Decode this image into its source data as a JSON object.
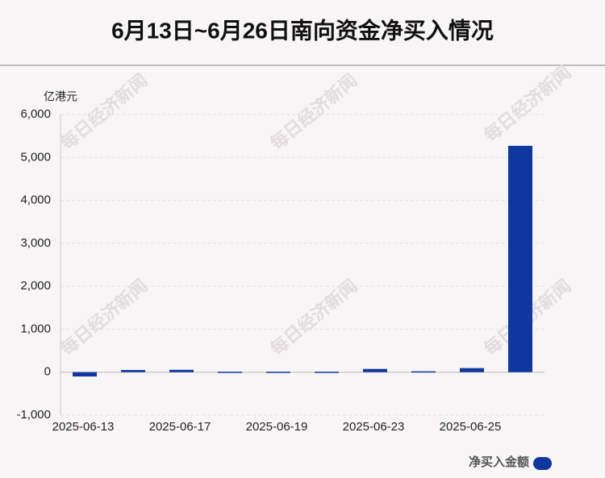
{
  "chart_data": {
    "type": "bar",
    "title": "6月13日~6月26日南向资金净买入情况",
    "y_label": "亿港元",
    "watermark": "每日经济新闻",
    "categories": [
      "2025-06-13",
      null,
      "2025-06-17",
      null,
      "2025-06-19",
      null,
      "2025-06-23",
      null,
      "2025-06-25",
      null
    ],
    "series": [
      {
        "name": "净买入金额",
        "color": "#0f37a0",
        "values": [
          -100,
          50,
          55,
          10,
          10,
          10,
          75,
          20,
          95,
          5270
        ]
      }
    ],
    "ylim": [
      -1000,
      6000
    ],
    "yticks": [
      {
        "value": -1000,
        "label": "-1,000"
      },
      0,
      {
        "value": 1000,
        "label": "1,000"
      },
      {
        "value": 2000,
        "label": "2,000"
      },
      {
        "value": 3000,
        "label": "3,000"
      },
      {
        "value": 4000,
        "label": "4,000"
      },
      {
        "value": 5000,
        "label": "5,000"
      },
      {
        "value": 6000,
        "label": "6,000"
      }
    ],
    "grid": true,
    "legend": "bottom-right"
  }
}
